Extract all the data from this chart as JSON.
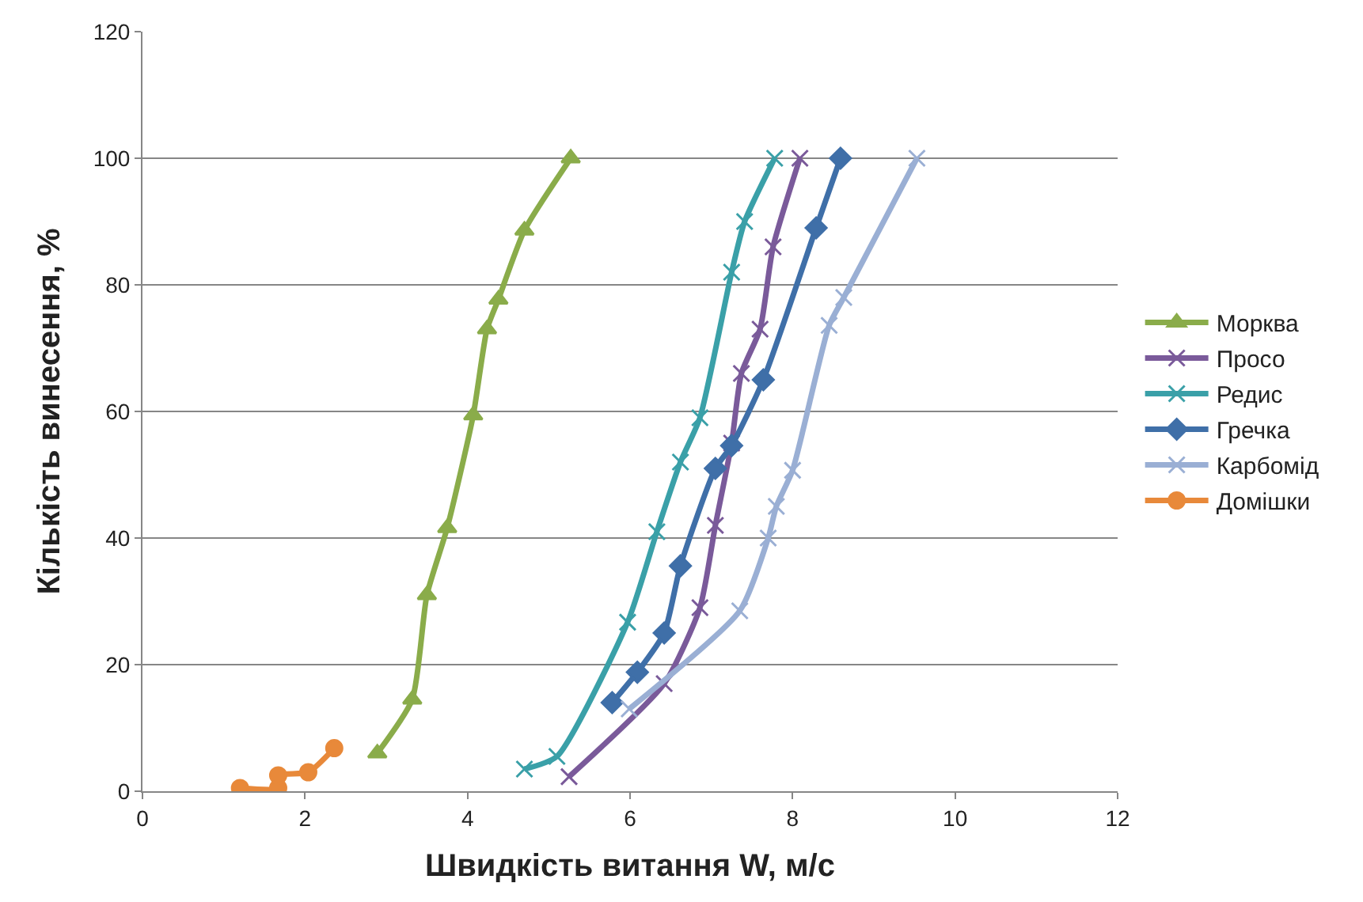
{
  "chart_data": {
    "type": "line",
    "xlabel": "Швидкість витання W, м/с",
    "ylabel": "Кількість винесення, %",
    "xlim": [
      0,
      12
    ],
    "xticks": [
      0,
      2,
      4,
      6,
      8,
      10,
      12
    ],
    "ylim": [
      0,
      120
    ],
    "yticks": [
      0,
      20,
      40,
      60,
      80,
      100,
      120
    ],
    "grid": "y",
    "legend": "right",
    "series": [
      {
        "name": "Морква",
        "color": "#8aac4a",
        "marker": "triangle",
        "x": [
          2.89,
          3.32,
          3.5,
          3.75,
          4.07,
          4.24,
          4.38,
          4.7,
          5.27
        ],
        "values": [
          6,
          14.5,
          31,
          41.6,
          59.4,
          73,
          77.7,
          88.6,
          100
        ]
      },
      {
        "name": "Просо",
        "color": "#7a5a9a",
        "marker": "cross",
        "x": [
          5.25,
          6.42,
          6.86,
          7.05,
          7.25,
          7.37,
          7.6,
          7.76,
          8.09
        ],
        "values": [
          2.3,
          17,
          29,
          42,
          55,
          66,
          73,
          86,
          100
        ]
      },
      {
        "name": "Редис",
        "color": "#3aa0a8",
        "marker": "cross",
        "x": [
          4.7,
          5.1,
          5.97,
          6.33,
          6.62,
          6.86,
          7.25,
          7.41,
          7.78
        ],
        "values": [
          3.5,
          5.5,
          26.7,
          41,
          52,
          59,
          82,
          90,
          100
        ]
      },
      {
        "name": "Гречка",
        "color": "#3f6fa8",
        "marker": "diamond",
        "x": [
          5.78,
          6.09,
          6.42,
          6.62,
          7.05,
          7.25,
          7.64,
          8.29,
          8.59
        ],
        "values": [
          14,
          18.8,
          25,
          35.6,
          51,
          54.6,
          65,
          89,
          100
        ]
      },
      {
        "name": "Карбомід",
        "color": "#9aafd4",
        "marker": "cross",
        "x": [
          5.99,
          7.35,
          7.7,
          7.8,
          8.0,
          8.45,
          8.63,
          9.53
        ],
        "values": [
          13,
          28.5,
          40,
          45,
          50.7,
          73.6,
          78,
          100
        ]
      },
      {
        "name": "Домішки",
        "color": "#e8893a",
        "marker": "circle",
        "x": [
          1.2,
          1.67,
          1.67,
          2.04,
          2.36
        ],
        "values": [
          0.5,
          0.5,
          2.5,
          3,
          6.8
        ]
      }
    ]
  }
}
